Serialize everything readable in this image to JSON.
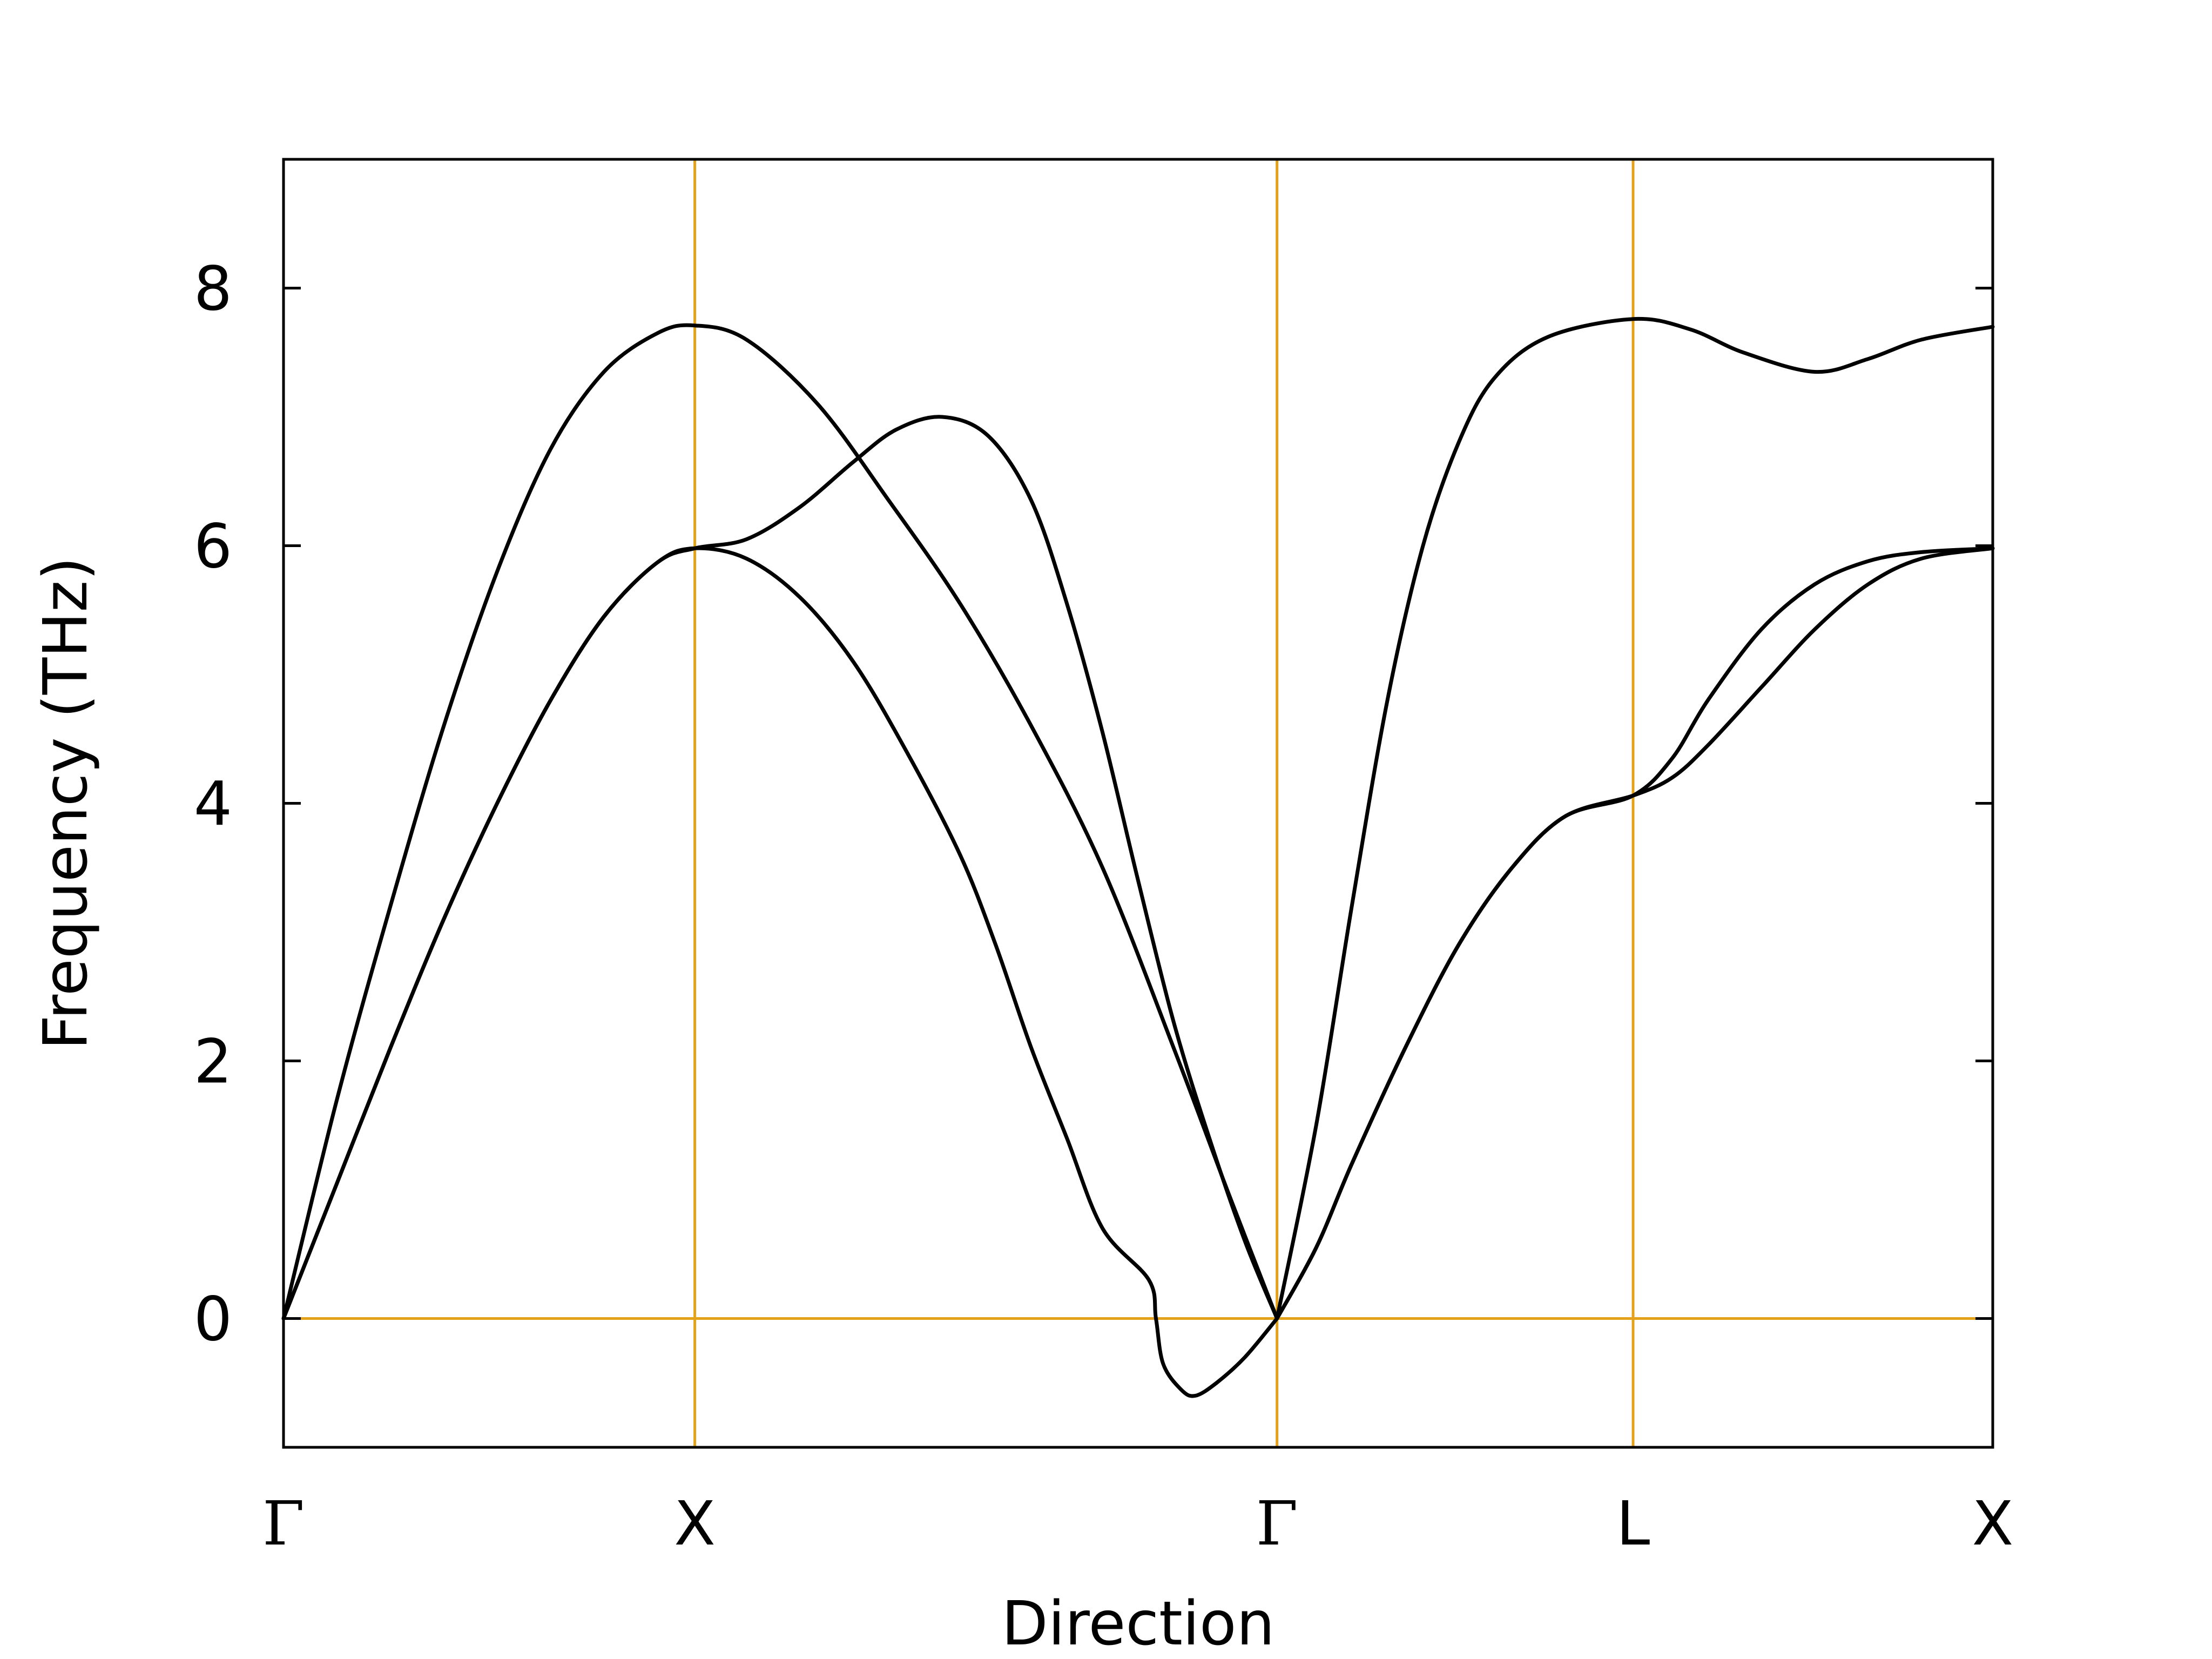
{
  "chart_data": {
    "type": "line",
    "title": "",
    "xlabel": "Direction",
    "ylabel": "Frequency (THz)",
    "ylim": [
      -1,
      9
    ],
    "yticks": [
      0,
      2,
      4,
      6,
      8
    ],
    "xlim": [
      0,
      4.8
    ],
    "kpoints": [
      {
        "label": "Γ",
        "x": 0
      },
      {
        "label": "X",
        "x": 1.155
      },
      {
        "label": "Γ",
        "x": 2.79
      },
      {
        "label": "L",
        "x": 3.79
      },
      {
        "label": "X",
        "x": 4.8
      }
    ],
    "guide_color": "#e3a21a",
    "line_color": "#000000",
    "grid": false,
    "series": [
      {
        "points": [
          [
            0,
            0
          ],
          [
            0.15,
            1.7
          ],
          [
            0.3,
            3.2
          ],
          [
            0.45,
            4.6
          ],
          [
            0.6,
            5.8
          ],
          [
            0.75,
            6.75
          ],
          [
            0.9,
            7.35
          ],
          [
            1.05,
            7.65
          ],
          [
            1.155,
            7.71
          ],
          [
            1.3,
            7.6
          ],
          [
            1.5,
            7.1
          ],
          [
            1.7,
            6.35
          ],
          [
            1.9,
            5.55
          ],
          [
            2.1,
            4.6
          ],
          [
            2.3,
            3.5
          ],
          [
            2.5,
            2.1
          ],
          [
            2.65,
            1.0
          ],
          [
            2.79,
            0
          ]
        ]
      },
      {
        "points": [
          [
            0,
            0
          ],
          [
            0.15,
            1.05
          ],
          [
            0.3,
            2.1
          ],
          [
            0.45,
            3.1
          ],
          [
            0.6,
            4.0
          ],
          [
            0.75,
            4.8
          ],
          [
            0.9,
            5.45
          ],
          [
            1.05,
            5.87
          ],
          [
            1.155,
            5.98
          ],
          [
            1.3,
            6.05
          ],
          [
            1.45,
            6.3
          ],
          [
            1.6,
            6.65
          ],
          [
            1.72,
            6.9
          ],
          [
            1.85,
            7.0
          ],
          [
            1.98,
            6.85
          ],
          [
            2.1,
            6.35
          ],
          [
            2.2,
            5.55
          ],
          [
            2.3,
            4.55
          ],
          [
            2.4,
            3.4
          ],
          [
            2.5,
            2.3
          ],
          [
            2.6,
            1.4
          ],
          [
            2.7,
            0.6
          ],
          [
            2.79,
            0
          ]
        ]
      },
      {
        "points": [
          [
            0,
            0
          ],
          [
            0.15,
            1.05
          ],
          [
            0.3,
            2.1
          ],
          [
            0.45,
            3.1
          ],
          [
            0.6,
            4.0
          ],
          [
            0.75,
            4.8
          ],
          [
            0.9,
            5.45
          ],
          [
            1.05,
            5.87
          ],
          [
            1.155,
            5.98
          ],
          [
            1.3,
            5.9
          ],
          [
            1.45,
            5.6
          ],
          [
            1.6,
            5.1
          ],
          [
            1.75,
            4.4
          ],
          [
            1.9,
            3.6
          ],
          [
            2.0,
            2.9
          ],
          [
            2.1,
            2.1
          ],
          [
            2.2,
            1.4
          ],
          [
            2.3,
            0.7
          ],
          [
            2.43,
            0.3
          ],
          [
            2.45,
            0
          ],
          [
            2.47,
            -0.35
          ],
          [
            2.52,
            -0.55
          ],
          [
            2.56,
            -0.6
          ],
          [
            2.62,
            -0.5
          ],
          [
            2.7,
            -0.3
          ],
          [
            2.79,
            0
          ]
        ]
      },
      {
        "points": [
          [
            2.79,
            0
          ],
          [
            2.9,
            1.5
          ],
          [
            3.0,
            3.2
          ],
          [
            3.1,
            4.8
          ],
          [
            3.2,
            6.0
          ],
          [
            3.3,
            6.8
          ],
          [
            3.4,
            7.3
          ],
          [
            3.55,
            7.62
          ],
          [
            3.79,
            7.76
          ],
          [
            3.95,
            7.68
          ],
          [
            4.1,
            7.5
          ],
          [
            4.3,
            7.35
          ],
          [
            4.45,
            7.45
          ],
          [
            4.6,
            7.6
          ],
          [
            4.8,
            7.7
          ]
        ]
      },
      {
        "points": [
          [
            2.79,
            0
          ],
          [
            2.9,
            0.55
          ],
          [
            3.0,
            1.2
          ],
          [
            3.15,
            2.1
          ],
          [
            3.3,
            2.9
          ],
          [
            3.45,
            3.5
          ],
          [
            3.6,
            3.9
          ],
          [
            3.79,
            4.06
          ],
          [
            3.9,
            4.2
          ],
          [
            4.0,
            4.45
          ],
          [
            4.15,
            4.9
          ],
          [
            4.3,
            5.35
          ],
          [
            4.45,
            5.7
          ],
          [
            4.6,
            5.9
          ],
          [
            4.8,
            5.98
          ]
        ]
      },
      {
        "points": [
          [
            2.79,
            0
          ],
          [
            2.9,
            0.55
          ],
          [
            3.0,
            1.2
          ],
          [
            3.15,
            2.1
          ],
          [
            3.3,
            2.9
          ],
          [
            3.45,
            3.5
          ],
          [
            3.6,
            3.9
          ],
          [
            3.79,
            4.06
          ],
          [
            3.9,
            4.35
          ],
          [
            4.0,
            4.8
          ],
          [
            4.15,
            5.35
          ],
          [
            4.3,
            5.7
          ],
          [
            4.45,
            5.88
          ],
          [
            4.6,
            5.95
          ],
          [
            4.8,
            5.98
          ]
        ]
      }
    ]
  }
}
